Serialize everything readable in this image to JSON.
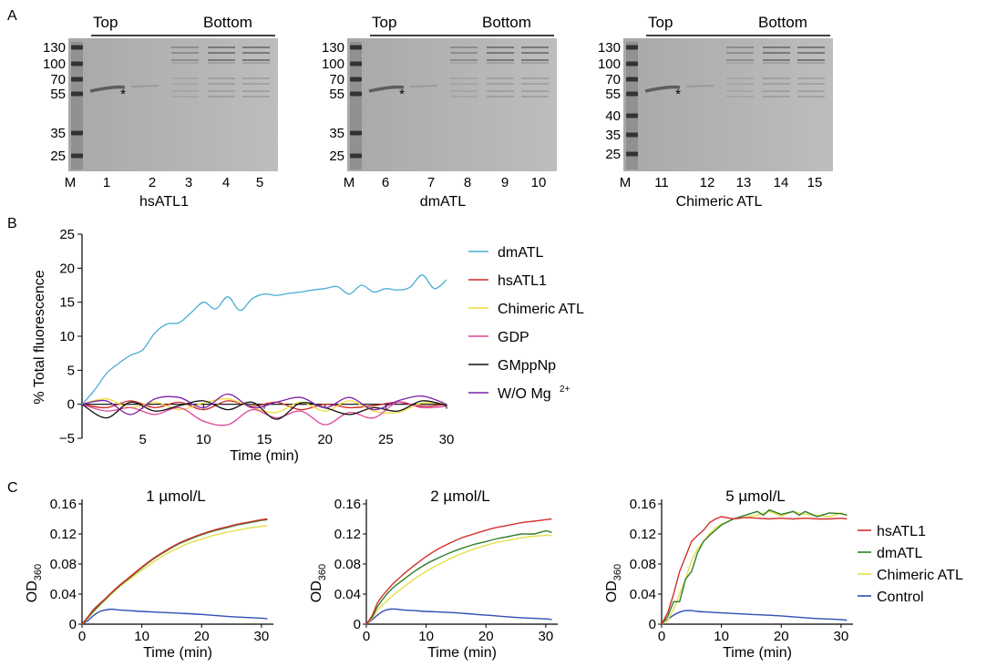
{
  "panels": {
    "A": {
      "letter": "A",
      "gels": [
        {
          "name": "hsATL1",
          "top_label": "Top",
          "bottom_label": "Bottom",
          "mw_markers": [
            "130",
            "100",
            "70",
            "55",
            "35",
            "25"
          ],
          "lanes": [
            "M",
            "1",
            "2",
            "3",
            "4",
            "5"
          ],
          "asterisk": "*"
        },
        {
          "name": "dmATL",
          "top_label": "Top",
          "bottom_label": "Bottom",
          "mw_markers": [
            "130",
            "100",
            "70",
            "55",
            "35",
            "25"
          ],
          "lanes": [
            "M",
            "6",
            "7",
            "8",
            "9",
            "10"
          ],
          "asterisk": "*"
        },
        {
          "name": "Chimeric ATL",
          "top_label": "Top",
          "bottom_label": "Bottom",
          "mw_markers": [
            "130",
            "100",
            "70",
            "55",
            "40",
            "35",
            "25"
          ],
          "lanes": [
            "M",
            "11",
            "12",
            "13",
            "14",
            "15"
          ],
          "asterisk": "*"
        }
      ]
    },
    "B": {
      "letter": "B",
      "xlabel": "Time (min)",
      "ylabel": "% Total fluorescence",
      "xticks": [
        "5",
        "10",
        "15",
        "20",
        "25",
        "30"
      ],
      "yticks": [
        "25",
        "20",
        "15",
        "10",
        "5",
        "0",
        "−5"
      ],
      "legend": [
        {
          "label": "dmATL",
          "color": "#4aaed3"
        },
        {
          "label": "hsATL1",
          "color": "#cc2a27"
        },
        {
          "label": "Chimeric ATL",
          "color": "#f0dc3c"
        },
        {
          "label": "GDP",
          "color": "#e0449a"
        },
        {
          "label": "GMppNp",
          "color": "#111111"
        },
        {
          "label": "W/O Mg",
          "sup": "2+",
          "color": "#7b22a6"
        }
      ]
    },
    "C": {
      "letter": "C",
      "ylabel_main": "OD",
      "ylabel_sub": "360",
      "xlabel": "Time (min)",
      "subplots": [
        {
          "title": "1 µmol/L",
          "yticks": [
            "0.16",
            "0.12",
            "0.08",
            "0.04",
            "0"
          ],
          "xticks": [
            "0",
            "10",
            "20",
            "30"
          ]
        },
        {
          "title": "2 µmol/L",
          "yticks": [
            "0.16",
            "0.12",
            "0.08",
            "0.04",
            "0"
          ],
          "xticks": [
            "0",
            "10",
            "20",
            "30"
          ]
        },
        {
          "title": "5 µmol/L",
          "yticks": [
            "0.16",
            "0.12",
            "0.08",
            "0.04",
            "0"
          ],
          "xticks": [
            "0",
            "10",
            "20",
            "30"
          ]
        }
      ],
      "legend": [
        {
          "label": "hsATL1",
          "color": "#d3302a"
        },
        {
          "label": "dmATL",
          "color": "#2e7d2a"
        },
        {
          "label": "Chimeric ATL",
          "color": "#e3e04a"
        },
        {
          "label": "Control",
          "color": "#2f4fb5"
        }
      ]
    }
  },
  "chart_data": [
    {
      "type": "line",
      "xlabel": "Time (min)",
      "ylabel": "% Total fluorescence",
      "xlim": [
        0,
        30
      ],
      "ylim": [
        -5,
        25
      ],
      "series": [
        {
          "name": "dmATL",
          "x": [
            0,
            1,
            2,
            3,
            4,
            5,
            6,
            7,
            8,
            9,
            10,
            11,
            12,
            13,
            14,
            15,
            16,
            17,
            18,
            19,
            20,
            21,
            22,
            23,
            24,
            25,
            26,
            27,
            28,
            29,
            30
          ],
          "values": [
            0,
            2,
            4.5,
            6,
            7.2,
            8,
            10.5,
            11.8,
            12,
            13.5,
            15,
            14,
            15.8,
            13.8,
            15.5,
            16.2,
            16,
            16.3,
            16.5,
            16.8,
            17,
            17.3,
            16.2,
            17.5,
            16.5,
            17,
            16.8,
            17.2,
            19,
            17,
            18.3
          ]
        },
        {
          "name": "hsATL1",
          "x": [
            0,
            2,
            4,
            6,
            8,
            10,
            12,
            14,
            16,
            18,
            20,
            22,
            24,
            26,
            28,
            30
          ],
          "values": [
            0,
            -0.5,
            0.5,
            -0.5,
            0.3,
            -0.8,
            0.5,
            -0.3,
            0.3,
            -0.8,
            0,
            -0.5,
            -0.2,
            0.3,
            -0.3,
            0
          ]
        },
        {
          "name": "Chimeric ATL",
          "x": [
            0,
            2,
            4,
            6,
            8,
            10,
            12,
            14,
            16,
            18,
            20,
            22,
            24,
            26,
            28,
            30
          ],
          "values": [
            0,
            0.8,
            -0.5,
            0.3,
            -0.8,
            0.2,
            0.8,
            -0.5,
            -1.2,
            0.3,
            -1,
            0.5,
            -1,
            -1.2,
            0.2,
            0
          ]
        },
        {
          "name": "GDP",
          "x": [
            0,
            2,
            4,
            6,
            8,
            10,
            12,
            14,
            16,
            18,
            20,
            22,
            24,
            26,
            28,
            30
          ],
          "values": [
            0,
            -1,
            -0.5,
            -1.5,
            -0.5,
            -2.5,
            -3,
            -0.8,
            -2,
            -1,
            -3,
            -1.2,
            -2,
            0.3,
            -0.5,
            -0.3
          ]
        },
        {
          "name": "GMppNp",
          "x": [
            0,
            2,
            4,
            6,
            8,
            10,
            12,
            14,
            16,
            18,
            20,
            22,
            24,
            26,
            28,
            30
          ],
          "values": [
            0,
            -2,
            0.3,
            -1,
            -0.2,
            0.5,
            -0.8,
            0.3,
            -2.2,
            0.2,
            -0.5,
            -1.5,
            -0.5,
            -1,
            0.5,
            -0.2
          ]
        },
        {
          "name": "W/O Mg2+",
          "x": [
            0,
            2,
            4,
            6,
            8,
            10,
            12,
            14,
            16,
            18,
            20,
            22,
            24,
            26,
            28,
            30
          ],
          "values": [
            0,
            0.5,
            -1.5,
            0.8,
            1,
            -0.5,
            1.5,
            -0.5,
            0.3,
            1,
            -0.5,
            1,
            -0.8,
            0.5,
            1.2,
            0
          ]
        }
      ]
    },
    {
      "type": "line",
      "title": "1 µmol/L",
      "xlabel": "Time (min)",
      "ylabel": "OD360",
      "xlim": [
        0,
        32
      ],
      "ylim": [
        0,
        0.16
      ],
      "series": [
        {
          "name": "hsATL1",
          "x": [
            0,
            1,
            2,
            4,
            6,
            8,
            10,
            12,
            14,
            16,
            18,
            20,
            22,
            24,
            26,
            28,
            30,
            31
          ],
          "values": [
            0,
            0.01,
            0.02,
            0.035,
            0.05,
            0.063,
            0.076,
            0.088,
            0.098,
            0.107,
            0.114,
            0.12,
            0.125,
            0.129,
            0.133,
            0.136,
            0.139,
            0.14
          ]
        },
        {
          "name": "dmATL",
          "x": [
            0,
            1,
            2,
            4,
            6,
            8,
            10,
            12,
            14,
            16,
            18,
            20,
            22,
            24,
            26,
            28,
            30,
            31
          ],
          "values": [
            0,
            0.009,
            0.018,
            0.034,
            0.049,
            0.062,
            0.075,
            0.087,
            0.097,
            0.106,
            0.113,
            0.119,
            0.124,
            0.128,
            0.132,
            0.135,
            0.138,
            0.139
          ]
        },
        {
          "name": "Chimeric ATL",
          "x": [
            0,
            1,
            2,
            4,
            6,
            8,
            10,
            12,
            14,
            16,
            18,
            20,
            22,
            24,
            26,
            28,
            30,
            31
          ],
          "values": [
            0,
            0.008,
            0.017,
            0.033,
            0.048,
            0.06,
            0.072,
            0.083,
            0.093,
            0.101,
            0.108,
            0.113,
            0.118,
            0.122,
            0.125,
            0.128,
            0.13,
            0.131
          ]
        },
        {
          "name": "Control",
          "x": [
            0,
            1,
            2,
            3,
            4,
            5,
            6,
            8,
            10,
            15,
            20,
            25,
            30,
            31
          ],
          "values": [
            0,
            0.005,
            0.012,
            0.017,
            0.019,
            0.02,
            0.019,
            0.018,
            0.017,
            0.015,
            0.013,
            0.01,
            0.008,
            0.007
          ]
        }
      ]
    },
    {
      "type": "line",
      "title": "2 µmol/L",
      "xlabel": "Time (min)",
      "ylabel": "OD360",
      "xlim": [
        0,
        32
      ],
      "ylim": [
        0,
        0.16
      ],
      "series": [
        {
          "name": "hsATL1",
          "x": [
            0,
            1,
            2,
            4,
            6,
            8,
            10,
            12,
            14,
            16,
            18,
            20,
            22,
            24,
            26,
            28,
            30,
            31
          ],
          "values": [
            0,
            0.012,
            0.03,
            0.05,
            0.065,
            0.078,
            0.09,
            0.1,
            0.108,
            0.115,
            0.12,
            0.125,
            0.129,
            0.132,
            0.135,
            0.137,
            0.139,
            0.14
          ]
        },
        {
          "name": "dmATL",
          "x": [
            0,
            1,
            2,
            4,
            6,
            8,
            10,
            12,
            14,
            16,
            18,
            20,
            22,
            24,
            26,
            28,
            30,
            31
          ],
          "values": [
            0,
            0.01,
            0.025,
            0.045,
            0.058,
            0.07,
            0.08,
            0.088,
            0.095,
            0.101,
            0.106,
            0.11,
            0.114,
            0.117,
            0.12,
            0.12,
            0.124,
            0.122
          ]
        },
        {
          "name": "Chimeric ATL",
          "x": [
            0,
            1,
            2,
            4,
            6,
            8,
            10,
            12,
            14,
            16,
            18,
            20,
            22,
            24,
            26,
            28,
            30,
            31
          ],
          "values": [
            0,
            0.008,
            0.02,
            0.035,
            0.048,
            0.06,
            0.07,
            0.079,
            0.087,
            0.094,
            0.1,
            0.105,
            0.109,
            0.112,
            0.115,
            0.117,
            0.118,
            0.118
          ]
        },
        {
          "name": "Control",
          "x": [
            0,
            1,
            2,
            3,
            4,
            5,
            6,
            8,
            10,
            15,
            20,
            25,
            30,
            31
          ],
          "values": [
            0,
            0.006,
            0.013,
            0.018,
            0.02,
            0.02,
            0.019,
            0.018,
            0.017,
            0.015,
            0.012,
            0.009,
            0.007,
            0.006
          ]
        }
      ]
    },
    {
      "type": "line",
      "title": "5 µmol/L",
      "xlabel": "Time (min)",
      "ylabel": "OD360",
      "xlim": [
        0,
        32
      ],
      "ylim": [
        0,
        0.16
      ],
      "series": [
        {
          "name": "hsATL1",
          "x": [
            0,
            1,
            2,
            3,
            4,
            5,
            6,
            7,
            8,
            9,
            10,
            12,
            14,
            16,
            18,
            20,
            22,
            24,
            26,
            28,
            30,
            31
          ],
          "values": [
            0,
            0.015,
            0.04,
            0.07,
            0.09,
            0.11,
            0.118,
            0.125,
            0.135,
            0.14,
            0.143,
            0.14,
            0.142,
            0.141,
            0.14,
            0.141,
            0.14,
            0.141,
            0.14,
            0.14,
            0.141,
            0.14
          ]
        },
        {
          "name": "dmATL",
          "x": [
            0,
            1,
            2,
            3,
            4,
            5,
            6,
            7,
            8,
            9,
            10,
            12,
            14,
            16,
            17,
            18,
            20,
            22,
            23,
            24,
            26,
            28,
            30,
            31
          ],
          "values": [
            0,
            0.01,
            0.03,
            0.03,
            0.06,
            0.07,
            0.095,
            0.11,
            0.118,
            0.125,
            0.132,
            0.14,
            0.145,
            0.15,
            0.145,
            0.152,
            0.146,
            0.15,
            0.145,
            0.15,
            0.143,
            0.148,
            0.147,
            0.145
          ]
        },
        {
          "name": "Chimeric ATL",
          "x": [
            0,
            1,
            2,
            3,
            4,
            5,
            6,
            7,
            8,
            9,
            10,
            12,
            14,
            16,
            18,
            20,
            22,
            24,
            26,
            28,
            30,
            31
          ],
          "values": [
            0,
            0.005,
            0.02,
            0.04,
            0.06,
            0.085,
            0.1,
            0.11,
            0.12,
            0.128,
            0.133,
            0.14,
            0.142,
            0.145,
            0.15,
            0.144,
            0.15,
            0.146,
            0.145,
            0.143,
            0.148,
            0.145
          ]
        },
        {
          "name": "Control",
          "x": [
            0,
            1,
            2,
            3,
            4,
            5,
            6,
            8,
            10,
            15,
            20,
            25,
            30,
            31
          ],
          "values": [
            0,
            0.006,
            0.012,
            0.016,
            0.018,
            0.018,
            0.017,
            0.016,
            0.015,
            0.013,
            0.011,
            0.008,
            0.006,
            0.005
          ]
        }
      ]
    }
  ]
}
